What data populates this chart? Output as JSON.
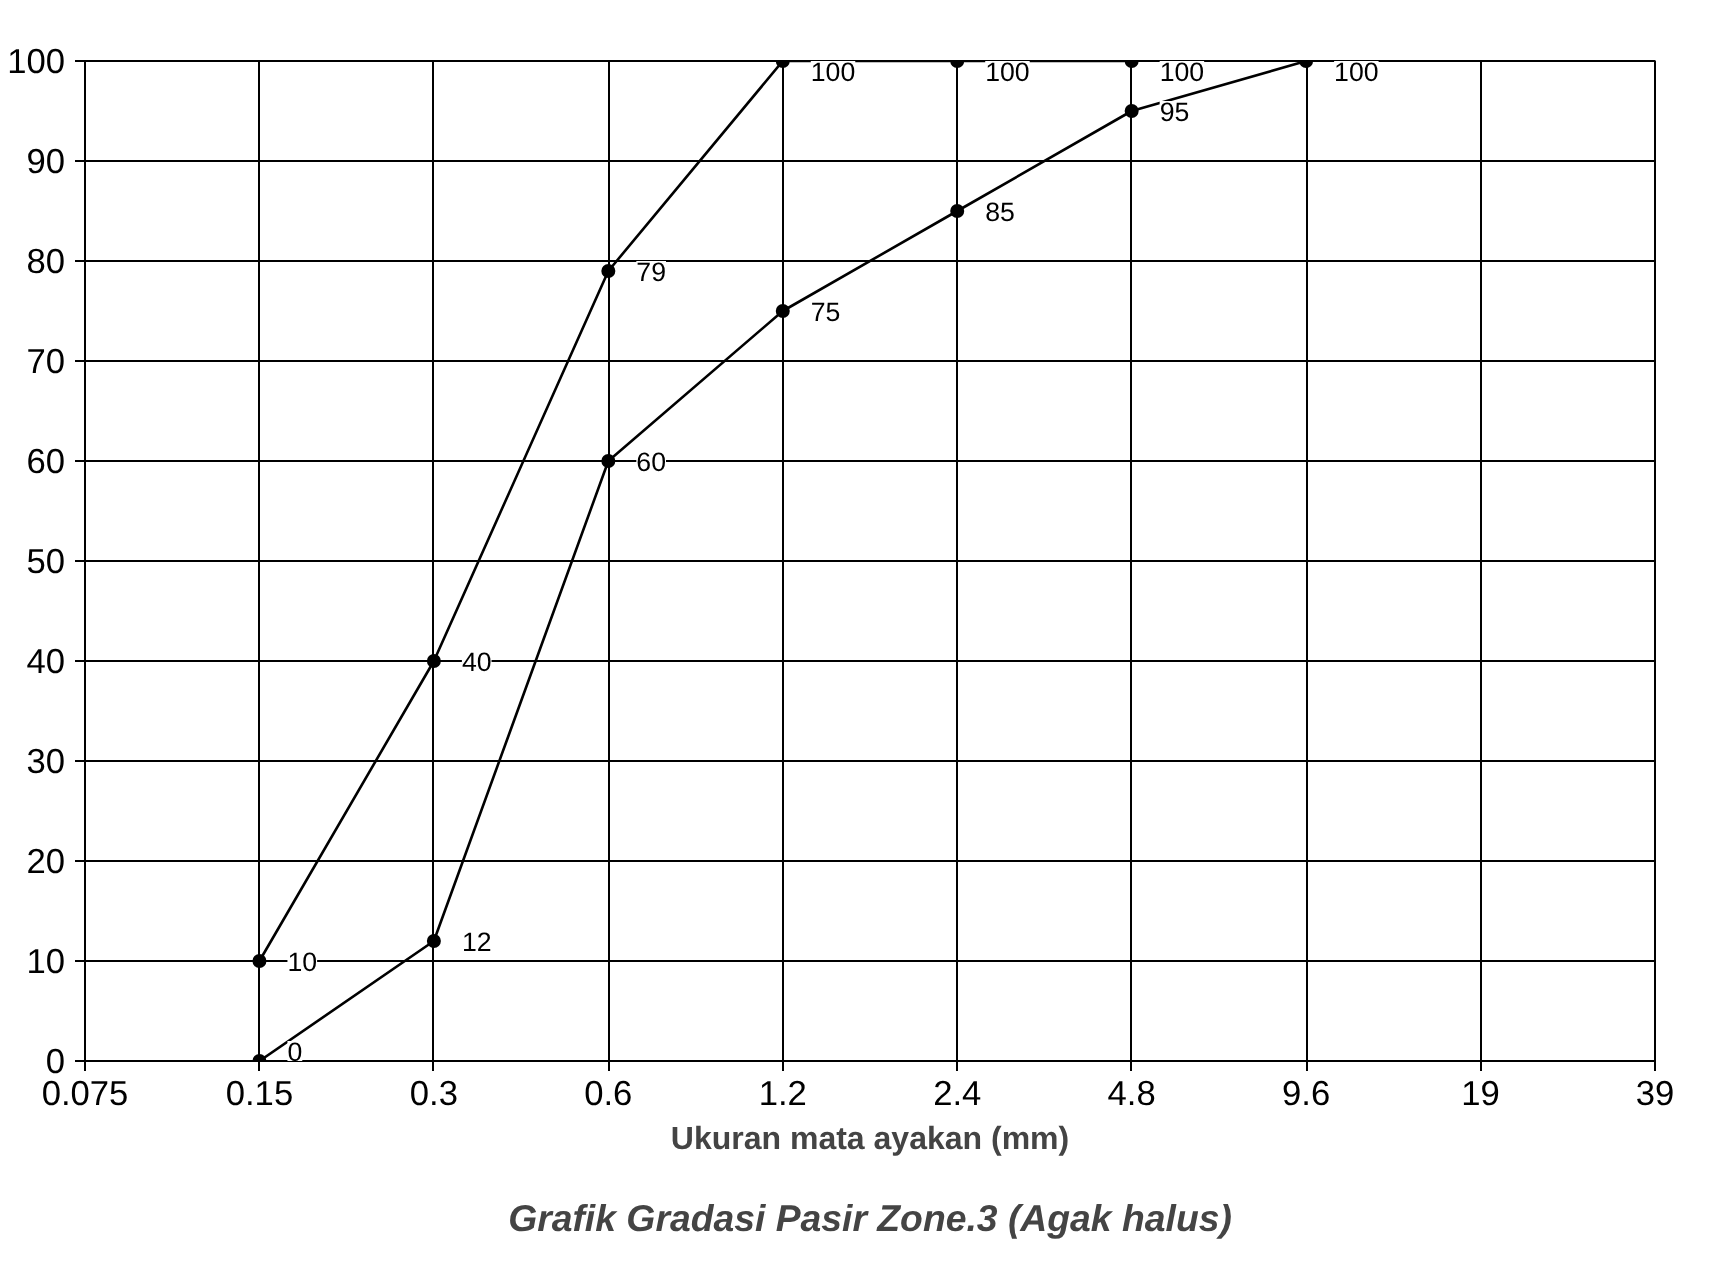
{
  "chart_data": {
    "type": "line",
    "title": "Grafik Gradasi Pasir Zone.3 (Agak halus)",
    "xlabel": "Ukuran mata ayakan (mm)",
    "categories": [
      "0.075",
      "0.15",
      "0.3",
      "0.6",
      "1.2",
      "2.4",
      "4.8",
      "9.6",
      "19",
      "39"
    ],
    "series": [
      {
        "color": "#000000",
        "values": [
          null,
          10,
          40,
          79,
          100,
          100,
          100,
          null,
          null,
          null
        ]
      },
      {
        "color": "#000000",
        "values": [
          null,
          0,
          12,
          60,
          75,
          85,
          95,
          100,
          null,
          null
        ]
      }
    ],
    "ylim": [
      0,
      100
    ],
    "yticks": [
      0,
      10,
      20,
      30,
      40,
      50,
      60,
      70,
      80,
      90,
      100
    ],
    "grid": true,
    "marker": "circle",
    "line_style": "solid",
    "data_labels": true
  }
}
